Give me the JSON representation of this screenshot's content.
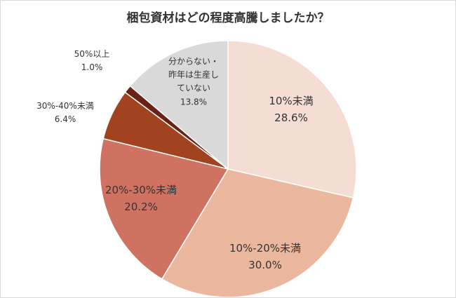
{
  "chart_data": {
    "type": "pie",
    "title": "梱包資材はどの程度高騰しましたか？",
    "categories": [
      "10%未満",
      "10%-20%未満",
      "20%-30%未満",
      "30%-40%未満",
      "50%以上",
      "分からない・昨年は生産していない"
    ],
    "values": [
      28.6,
      30.0,
      20.2,
      6.4,
      1.0,
      13.8
    ],
    "value_labels": [
      "28.6%",
      "30.0%",
      "20.2%",
      "6.4%",
      "1.0%",
      "13.8%"
    ],
    "colors": [
      "#f6ddd4",
      "#ecb79f",
      "#d07262",
      "#a1431f",
      "#6a2212",
      "#d9d9d9"
    ]
  }
}
